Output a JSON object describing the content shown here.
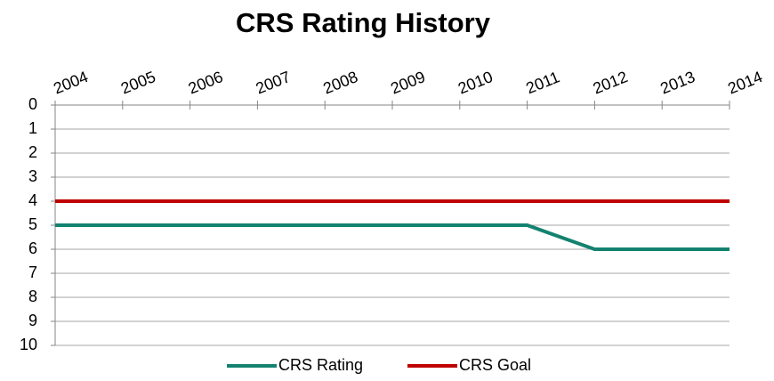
{
  "chart_data": {
    "type": "line",
    "title": "CRS Rating History",
    "x": [
      2004,
      2005,
      2006,
      2007,
      2008,
      2009,
      2010,
      2011,
      2012,
      2013,
      2014
    ],
    "xlim": [
      2004,
      2014
    ],
    "xticks": [
      2004,
      2005,
      2006,
      2007,
      2008,
      2009,
      2010,
      2011,
      2012,
      2013,
      2014
    ],
    "ylim": [
      0,
      10
    ],
    "yticks": [
      0,
      1,
      2,
      3,
      4,
      5,
      6,
      7,
      8,
      9,
      10
    ],
    "y_inverted": true,
    "x_axis_position": "top",
    "grid": true,
    "legend": "bottom",
    "series": [
      {
        "name": "CRS Rating",
        "color": "#138270",
        "values": [
          5,
          5,
          5,
          5,
          5,
          5,
          5,
          5,
          6,
          6,
          6
        ]
      },
      {
        "name": "CRS Goal",
        "color": "#c00000",
        "values": [
          4,
          4,
          4,
          4,
          4,
          4,
          4,
          4,
          4,
          4,
          4
        ]
      }
    ]
  }
}
